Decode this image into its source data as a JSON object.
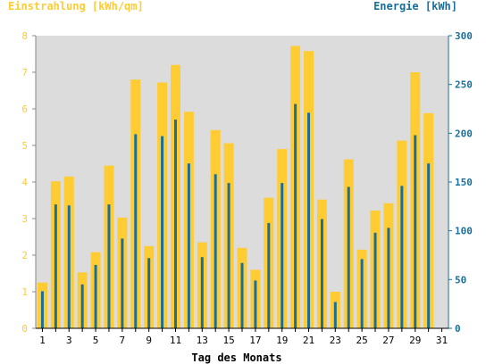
{
  "chart_data": {
    "type": "bar",
    "left_axis_title": "Einstrahlung [kWh/qm]",
    "right_axis_title": "Energie [kWh]",
    "xlabel": "Tag des Monats",
    "left_ylim": [
      0,
      8
    ],
    "right_ylim": [
      0,
      300
    ],
    "left_ticks": [
      0,
      1,
      2,
      3,
      4,
      5,
      6,
      7,
      8
    ],
    "right_ticks": [
      0,
      50,
      100,
      150,
      200,
      250,
      300
    ],
    "x_tick_labels": [
      1,
      3,
      5,
      7,
      9,
      11,
      13,
      15,
      17,
      19,
      21,
      23,
      25,
      27,
      29,
      31
    ],
    "grid": false,
    "colors": {
      "einstrahlung": "#ffcc33",
      "energie": "#1a6f9a",
      "left_axis": "#ffcc33",
      "right_axis": "#1a6f9a",
      "plot_bg": "#dcdcdc"
    },
    "days": [
      1,
      2,
      3,
      4,
      5,
      6,
      7,
      8,
      9,
      10,
      11,
      12,
      13,
      14,
      15,
      16,
      17,
      18,
      19,
      20,
      21,
      22,
      23,
      24,
      25,
      26,
      27,
      28,
      29,
      30,
      31
    ],
    "series": [
      {
        "key": "einstrahlung",
        "axis": "left",
        "values": [
          1.25,
          4.02,
          4.15,
          1.53,
          2.08,
          4.45,
          3.03,
          6.8,
          2.25,
          6.72,
          7.2,
          5.92,
          2.35,
          5.42,
          5.06,
          2.2,
          1.6,
          3.57,
          4.9,
          7.72,
          7.58,
          3.52,
          1.0,
          4.62,
          2.15,
          3.22,
          3.42,
          5.13,
          7.0,
          5.88,
          0
        ]
      },
      {
        "key": "energie",
        "axis": "right",
        "values": [
          38,
          127,
          126,
          45,
          65,
          127,
          92,
          199,
          72,
          197,
          214,
          169,
          73,
          158,
          149,
          67,
          49,
          108,
          149,
          230,
          221,
          112,
          27,
          145,
          71,
          98,
          103,
          146,
          198,
          169,
          0
        ]
      }
    ]
  }
}
